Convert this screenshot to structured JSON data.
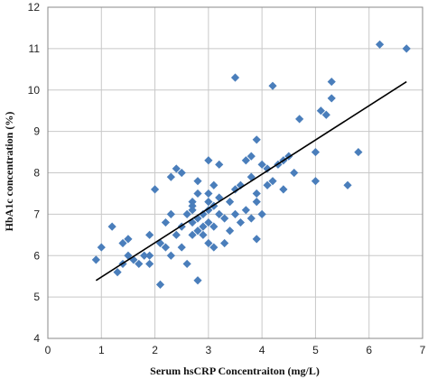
{
  "chart_data": {
    "type": "scatter",
    "title": "",
    "xlabel": "Serum hsCRP Concentraiton (mg/L)",
    "ylabel": "HbA1c concentration (%)",
    "xlim": [
      0,
      7
    ],
    "ylim": [
      4,
      12
    ],
    "xticks": [
      "0",
      "1",
      "2",
      "3",
      "4",
      "5",
      "6",
      "7"
    ],
    "yticks": [
      "4",
      "5",
      "6",
      "7",
      "8",
      "9",
      "10",
      "11",
      "12"
    ],
    "grid": true,
    "legend": "none",
    "marker": "diamond",
    "marker_color": "#4a7ebb",
    "fit_line_color": "#000000",
    "fit_line": [
      [
        0.9,
        5.4
      ],
      [
        6.7,
        10.2
      ]
    ],
    "points": [
      [
        0.9,
        5.9
      ],
      [
        1.0,
        6.2
      ],
      [
        1.2,
        6.7
      ],
      [
        1.3,
        5.6
      ],
      [
        1.4,
        6.3
      ],
      [
        1.4,
        5.8
      ],
      [
        1.5,
        6.4
      ],
      [
        1.5,
        6.0
      ],
      [
        1.6,
        5.9
      ],
      [
        1.7,
        5.8
      ],
      [
        1.8,
        6.0
      ],
      [
        1.9,
        6.0
      ],
      [
        1.9,
        5.8
      ],
      [
        1.9,
        6.5
      ],
      [
        2.0,
        7.6
      ],
      [
        2.1,
        5.3
      ],
      [
        2.1,
        6.3
      ],
      [
        2.2,
        6.2
      ],
      [
        2.2,
        6.8
      ],
      [
        2.3,
        6.0
      ],
      [
        2.3,
        7.0
      ],
      [
        2.3,
        7.9
      ],
      [
        2.4,
        8.1
      ],
      [
        2.4,
        6.5
      ],
      [
        2.5,
        6.2
      ],
      [
        2.5,
        6.7
      ],
      [
        2.5,
        8.0
      ],
      [
        2.6,
        7.0
      ],
      [
        2.6,
        5.8
      ],
      [
        2.7,
        6.5
      ],
      [
        2.7,
        6.8
      ],
      [
        2.7,
        7.1
      ],
      [
        2.7,
        7.2
      ],
      [
        2.7,
        7.3
      ],
      [
        2.8,
        5.4
      ],
      [
        2.8,
        6.6
      ],
      [
        2.8,
        6.9
      ],
      [
        2.8,
        7.5
      ],
      [
        2.8,
        7.8
      ],
      [
        2.9,
        6.5
      ],
      [
        2.9,
        6.7
      ],
      [
        2.9,
        7.0
      ],
      [
        3.0,
        6.3
      ],
      [
        3.0,
        6.8
      ],
      [
        3.0,
        7.1
      ],
      [
        3.0,
        7.3
      ],
      [
        3.0,
        7.5
      ],
      [
        3.0,
        8.3
      ],
      [
        3.1,
        6.2
      ],
      [
        3.1,
        6.7
      ],
      [
        3.1,
        7.7
      ],
      [
        3.1,
        7.2
      ],
      [
        3.2,
        7.0
      ],
      [
        3.2,
        7.4
      ],
      [
        3.2,
        8.2
      ],
      [
        3.3,
        6.3
      ],
      [
        3.3,
        6.9
      ],
      [
        3.4,
        7.3
      ],
      [
        3.4,
        6.6
      ],
      [
        3.5,
        7.0
      ],
      [
        3.5,
        7.6
      ],
      [
        3.5,
        10.3
      ],
      [
        3.6,
        6.8
      ],
      [
        3.6,
        7.7
      ],
      [
        3.7,
        7.1
      ],
      [
        3.7,
        8.3
      ],
      [
        3.8,
        6.9
      ],
      [
        3.8,
        7.9
      ],
      [
        3.8,
        8.4
      ],
      [
        3.9,
        7.5
      ],
      [
        3.9,
        8.8
      ],
      [
        3.9,
        6.4
      ],
      [
        3.9,
        7.3
      ],
      [
        4.0,
        7.0
      ],
      [
        4.0,
        8.2
      ],
      [
        4.1,
        7.7
      ],
      [
        4.1,
        8.1
      ],
      [
        4.2,
        7.8
      ],
      [
        4.2,
        10.1
      ],
      [
        4.3,
        8.2
      ],
      [
        4.4,
        8.3
      ],
      [
        4.4,
        7.6
      ],
      [
        4.5,
        8.4
      ],
      [
        4.6,
        8.0
      ],
      [
        4.7,
        9.3
      ],
      [
        5.0,
        8.5
      ],
      [
        5.0,
        7.8
      ],
      [
        5.1,
        9.5
      ],
      [
        5.2,
        9.4
      ],
      [
        5.3,
        9.8
      ],
      [
        5.3,
        10.2
      ],
      [
        5.6,
        7.7
      ],
      [
        5.8,
        8.5
      ],
      [
        6.2,
        11.1
      ],
      [
        6.7,
        11.0
      ]
    ]
  }
}
